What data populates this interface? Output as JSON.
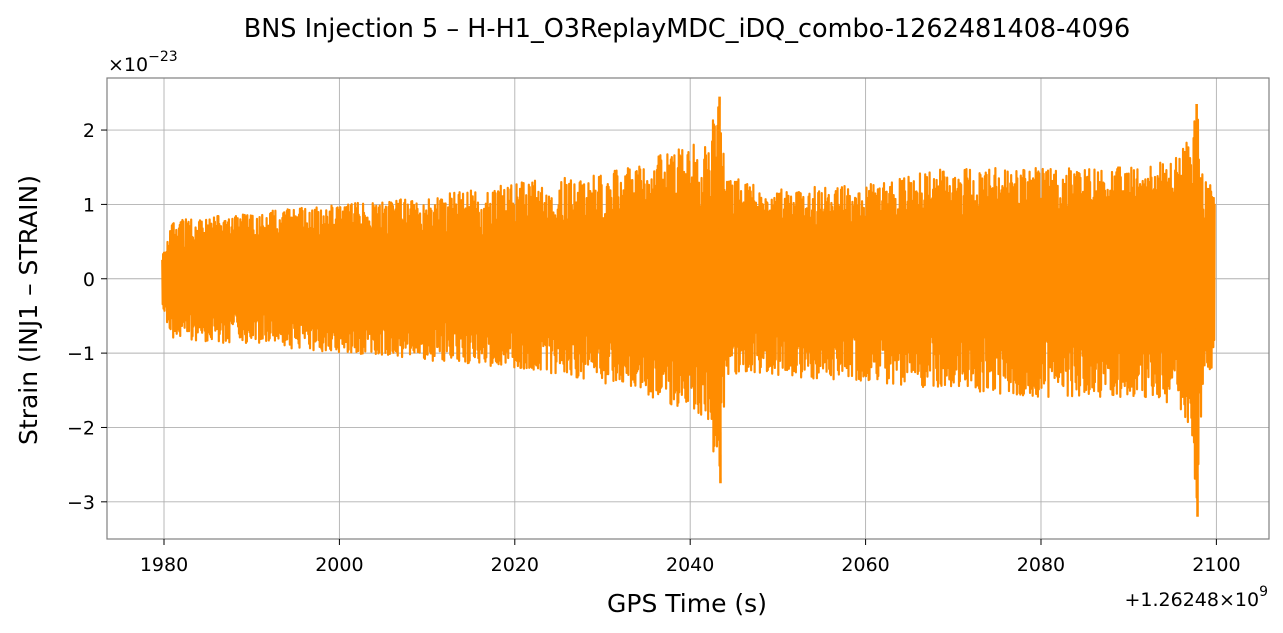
{
  "chart_data": {
    "type": "line",
    "title": "BNS Injection 5 – H-H1_O3ReplayMDC_iDQ_combo-1262481408-4096",
    "xlabel": "GPS Time (s)",
    "ylabel": "Strain (INJ1 – STRAIN)",
    "y_multiplier_base": "×10",
    "y_multiplier_exp": "−23",
    "x_offset_prefix": "+1.26248",
    "x_offset_suffix": "×10",
    "x_offset_exp": "9",
    "xlim": [
      1973.5,
      2106
    ],
    "ylim": [
      -3.5,
      2.7
    ],
    "xticks": [
      1980,
      2000,
      2020,
      2040,
      2060,
      2080,
      2100
    ],
    "xtick_labels": [
      "1980",
      "2000",
      "2020",
      "2040",
      "2060",
      "2080",
      "2100"
    ],
    "yticks": [
      2,
      1,
      0,
      -1,
      -2,
      -3
    ],
    "ytick_labels": [
      "2",
      "1",
      "0",
      "−1",
      "−2",
      "−3"
    ],
    "grid": true,
    "line_color": "#ff8c00",
    "series": [
      {
        "x_range": [
          1979.8,
          2099.8
        ],
        "envelope_time": [
          1979.8,
          1981,
          1990,
          2000,
          2010,
          2020,
          2030,
          2035,
          2040,
          2042,
          2043.3,
          2044,
          2046,
          2050,
          2060,
          2070,
          2080,
          2090,
          2095,
          2097,
          2097.8,
          2098.5,
          2099.8
        ],
        "envelope_upper": [
          0.3,
          0.8,
          0.9,
          1.0,
          1.1,
          1.3,
          1.4,
          1.6,
          1.8,
          1.9,
          2.45,
          1.5,
          1.3,
          1.2,
          1.3,
          1.5,
          1.5,
          1.5,
          1.6,
          1.9,
          2.35,
          1.3,
          1.3
        ],
        "envelope_lower": [
          -0.4,
          -0.8,
          -0.9,
          -1.0,
          -1.1,
          -1.2,
          -1.4,
          -1.6,
          -1.8,
          -1.9,
          -2.75,
          -1.5,
          -1.3,
          -1.3,
          -1.4,
          -1.5,
          -1.6,
          -1.6,
          -1.7,
          -2.0,
          -3.2,
          -1.3,
          -1.2
        ],
        "peaks": [
          {
            "x": 2043.3,
            "y": 2.45
          },
          {
            "x": 2043.4,
            "y": -2.75
          },
          {
            "x": 2097.7,
            "y": 2.35
          },
          {
            "x": 2097.8,
            "y": -3.2
          }
        ]
      }
    ]
  }
}
